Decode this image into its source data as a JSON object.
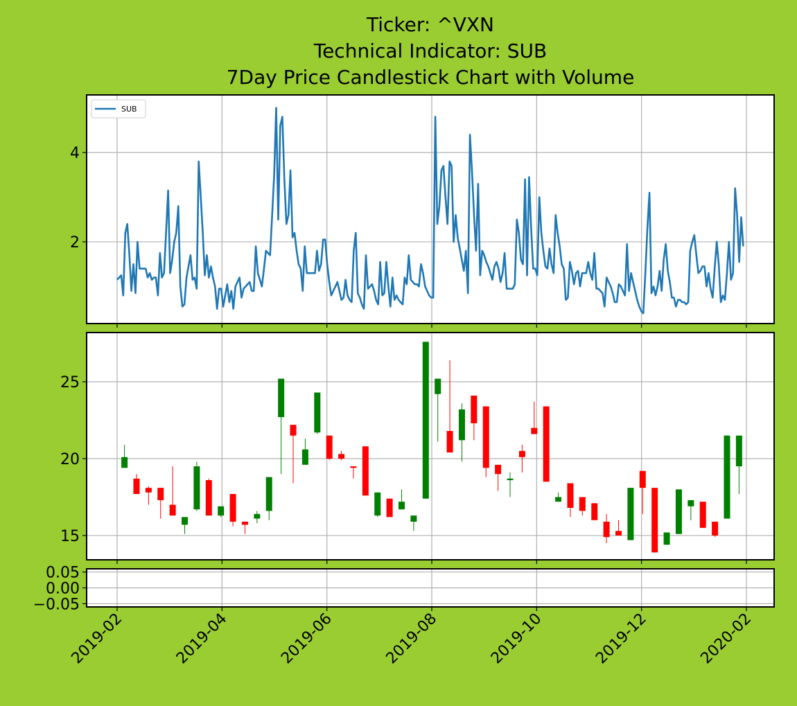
{
  "title": [
    "Ticker: ^VXN",
    "Technical Indicator: SUB",
    "7Day Price Candlestick Chart with Volume"
  ],
  "chart_data": [
    {
      "type": "line",
      "legend": "upper left",
      "grid": true,
      "ylim": [
        0.17,
        5.29
      ],
      "yticks": [
        2,
        4
      ],
      "series": [
        {
          "name": "SUB",
          "color": "#1f77b4",
          "values": [
            1.15,
            1.2,
            1.25,
            0.8,
            2.2,
            2.4,
            1.7,
            0.9,
            1.5,
            0.85,
            2.0,
            1.4,
            1.4,
            1.4,
            1.4,
            1.2,
            1.3,
            1.15,
            1.2,
            1.2,
            0.8,
            1.75,
            1.2,
            1.3,
            2.2,
            3.15,
            1.3,
            1.6,
            2.0,
            2.2,
            2.8,
            1.0,
            0.55,
            0.6,
            1.2,
            1.45,
            1.7,
            1.15,
            1.2,
            0.95,
            3.8,
            3.0,
            2.2,
            1.25,
            1.7,
            1.2,
            1.45,
            1.2,
            1.0,
            0.5,
            0.95,
            0.95,
            0.55,
            0.8,
            1.05,
            0.65,
            0.9,
            0.5,
            1.0,
            1.1,
            1.2,
            0.75,
            0.95,
            1.0,
            1.05,
            1.1,
            0.9,
            0.9,
            1.9,
            1.3,
            1.15,
            1.0,
            1.4,
            1.8,
            1.75,
            1.7,
            2.6,
            3.5,
            5.0,
            2.5,
            4.6,
            4.8,
            3.4,
            2.4,
            2.6,
            3.6,
            2.1,
            2.2,
            1.8,
            1.5,
            1.4,
            0.9,
            1.9,
            1.3,
            1.3,
            1.3,
            1.3,
            1.3,
            1.8,
            1.35,
            1.5,
            2.05,
            2.05,
            1.5,
            1.1,
            0.8,
            0.9,
            1.0,
            1.1,
            0.9,
            0.7,
            0.75,
            1.15,
            0.8,
            0.7,
            0.65,
            1.8,
            2.2,
            0.85,
            0.75,
            0.6,
            0.5,
            1.7,
            0.95,
            1.0,
            1.05,
            0.9,
            0.7,
            0.6,
            1.55,
            0.8,
            0.85,
            1.55,
            1.0,
            0.55,
            1.2,
            0.7,
            0.8,
            0.7,
            0.65,
            0.6,
            1.2,
            1.05,
            1.7,
            1.15,
            1.1,
            1.05,
            1.05,
            1.0,
            1.5,
            1.3,
            1.0,
            0.9,
            0.8,
            0.75,
            0.75,
            4.8,
            2.4,
            2.8,
            3.6,
            3.7,
            3.0,
            2.4,
            3.8,
            3.7,
            2.0,
            2.6,
            2.1,
            1.85,
            1.6,
            1.35,
            1.8,
            0.85,
            4.4,
            3.6,
            2.6,
            1.8,
            3.3,
            1.25,
            1.8,
            1.7,
            1.55,
            1.45,
            1.3,
            1.15,
            1.45,
            1.55,
            1.4,
            1.1,
            1.3,
            1.75,
            0.95,
            0.95,
            0.95,
            0.95,
            1.05,
            2.5,
            2.2,
            1.6,
            1.5,
            3.4,
            1.25,
            3.45,
            2.3,
            1.4,
            1.4,
            1.25,
            3.0,
            2.2,
            1.8,
            1.45,
            1.4,
            1.85,
            1.5,
            1.3,
            2.6,
            2.2,
            1.9,
            1.5,
            1.4,
            0.7,
            0.75,
            1.55,
            1.35,
            1.05,
            1.3,
            1.35,
            1.0,
            1.3,
            1.3,
            1.3,
            1.55,
            1.3,
            1.15,
            1.75,
            0.95,
            0.95,
            0.9,
            0.85,
            0.55,
            1.2,
            1.1,
            1.0,
            0.85,
            0.65,
            0.65,
            1.05,
            1.0,
            0.9,
            0.8,
            1.95,
            0.9,
            1.3,
            1.1,
            0.9,
            0.7,
            0.55,
            0.45,
            0.4,
            1.3,
            2.3,
            3.1,
            0.85,
            1.0,
            0.8,
            1.0,
            1.35,
            0.9,
            1.6,
            1.95,
            1.35,
            1.1,
            0.75,
            0.75,
            0.55,
            0.7,
            0.7,
            0.65,
            0.65,
            0.6,
            0.65,
            1.8,
            2.0,
            2.15,
            1.7,
            1.3,
            1.35,
            1.45,
            1.45,
            1.0,
            1.3,
            0.95,
            0.75,
            1.4,
            2.0,
            1.5,
            0.65,
            0.8,
            0.7,
            1.3,
            2.0,
            1.15,
            1.3,
            3.2,
            2.6,
            1.55,
            2.55,
            1.9
          ]
        }
      ]
    },
    {
      "type": "candlestick",
      "grid": true,
      "up_color": "green",
      "down_color": "red",
      "ylim": [
        13.42,
        28.2
      ],
      "yticks": [
        15,
        20,
        25
      ],
      "open": [
        19.4,
        18.7,
        18.1,
        18.1,
        17.0,
        15.7,
        16.7,
        18.6,
        16.3,
        17.7,
        15.9,
        16.1,
        16.6,
        22.7,
        22.2,
        19.6,
        21.7,
        21.5,
        20.3,
        19.5,
        20.8,
        16.3,
        17.4,
        16.7,
        15.9,
        17.4,
        24.2,
        21.8,
        21.2,
        24.1,
        23.4,
        19.6,
        18.6,
        20.5,
        22.0,
        23.4,
        17.2,
        18.4,
        17.5,
        17.1,
        15.9,
        15.3,
        14.7,
        19.2,
        18.1,
        14.4,
        15.1,
        16.9,
        17.2,
        15.9,
        16.1,
        19.5
      ],
      "high": [
        20.9,
        19.0,
        18.2,
        18.1,
        19.5,
        16.2,
        19.8,
        18.7,
        16.9,
        17.7,
        15.9,
        16.6,
        18.8,
        25.2,
        22.2,
        21.3,
        24.3,
        21.5,
        20.5,
        19.5,
        20.8,
        17.8,
        17.4,
        18.0,
        16.3,
        27.6,
        25.2,
        26.4,
        23.6,
        24.1,
        23.4,
        19.6,
        19.1,
        20.9,
        23.7,
        23.4,
        17.8,
        18.4,
        17.5,
        17.1,
        16.4,
        16.0,
        18.1,
        19.2,
        18.1,
        15.2,
        18.0,
        17.3,
        17.2,
        15.9,
        21.5,
        21.5
      ],
      "low": [
        19.4,
        17.7,
        17.0,
        16.1,
        16.3,
        15.1,
        16.6,
        16.3,
        16.2,
        15.6,
        15.1,
        15.8,
        16.0,
        19.0,
        18.4,
        19.6,
        21.6,
        19.9,
        19.9,
        18.7,
        17.6,
        16.2,
        16.2,
        16.7,
        15.3,
        17.4,
        21.1,
        20.4,
        19.8,
        21.2,
        18.8,
        17.9,
        17.5,
        19.1,
        21.6,
        18.5,
        17.2,
        16.2,
        16.3,
        16.0,
        14.5,
        15.0,
        14.7,
        16.4,
        13.9,
        14.4,
        15.1,
        16.0,
        15.5,
        14.9,
        16.1,
        17.7
      ],
      "close": [
        20.1,
        17.7,
        17.8,
        17.3,
        16.3,
        16.2,
        19.5,
        16.3,
        16.9,
        15.9,
        15.7,
        16.4,
        18.8,
        25.2,
        21.5,
        20.6,
        24.3,
        20.0,
        20.0,
        19.4,
        17.6,
        17.8,
        16.2,
        17.2,
        16.3,
        27.6,
        25.2,
        20.4,
        23.2,
        22.3,
        19.4,
        19.0,
        18.7,
        20.1,
        21.6,
        18.5,
        17.5,
        16.8,
        16.6,
        16.0,
        14.9,
        15.0,
        18.1,
        18.1,
        13.9,
        15.2,
        18.0,
        17.3,
        15.5,
        15.0,
        21.5,
        21.5
      ]
    },
    {
      "type": "bar",
      "grid": true,
      "ylim": [
        -0.06,
        0.06
      ],
      "yticks": [
        {
          "value": 0.05,
          "label": "0.05"
        },
        {
          "value": 0,
          "label": "0.00"
        },
        {
          "value": -0.05,
          "label": "−0.05"
        }
      ],
      "xticks": [
        "2019-02",
        "2019-04",
        "2019-06",
        "2019-08",
        "2019-10",
        "2019-12",
        "2020-02"
      ]
    }
  ]
}
